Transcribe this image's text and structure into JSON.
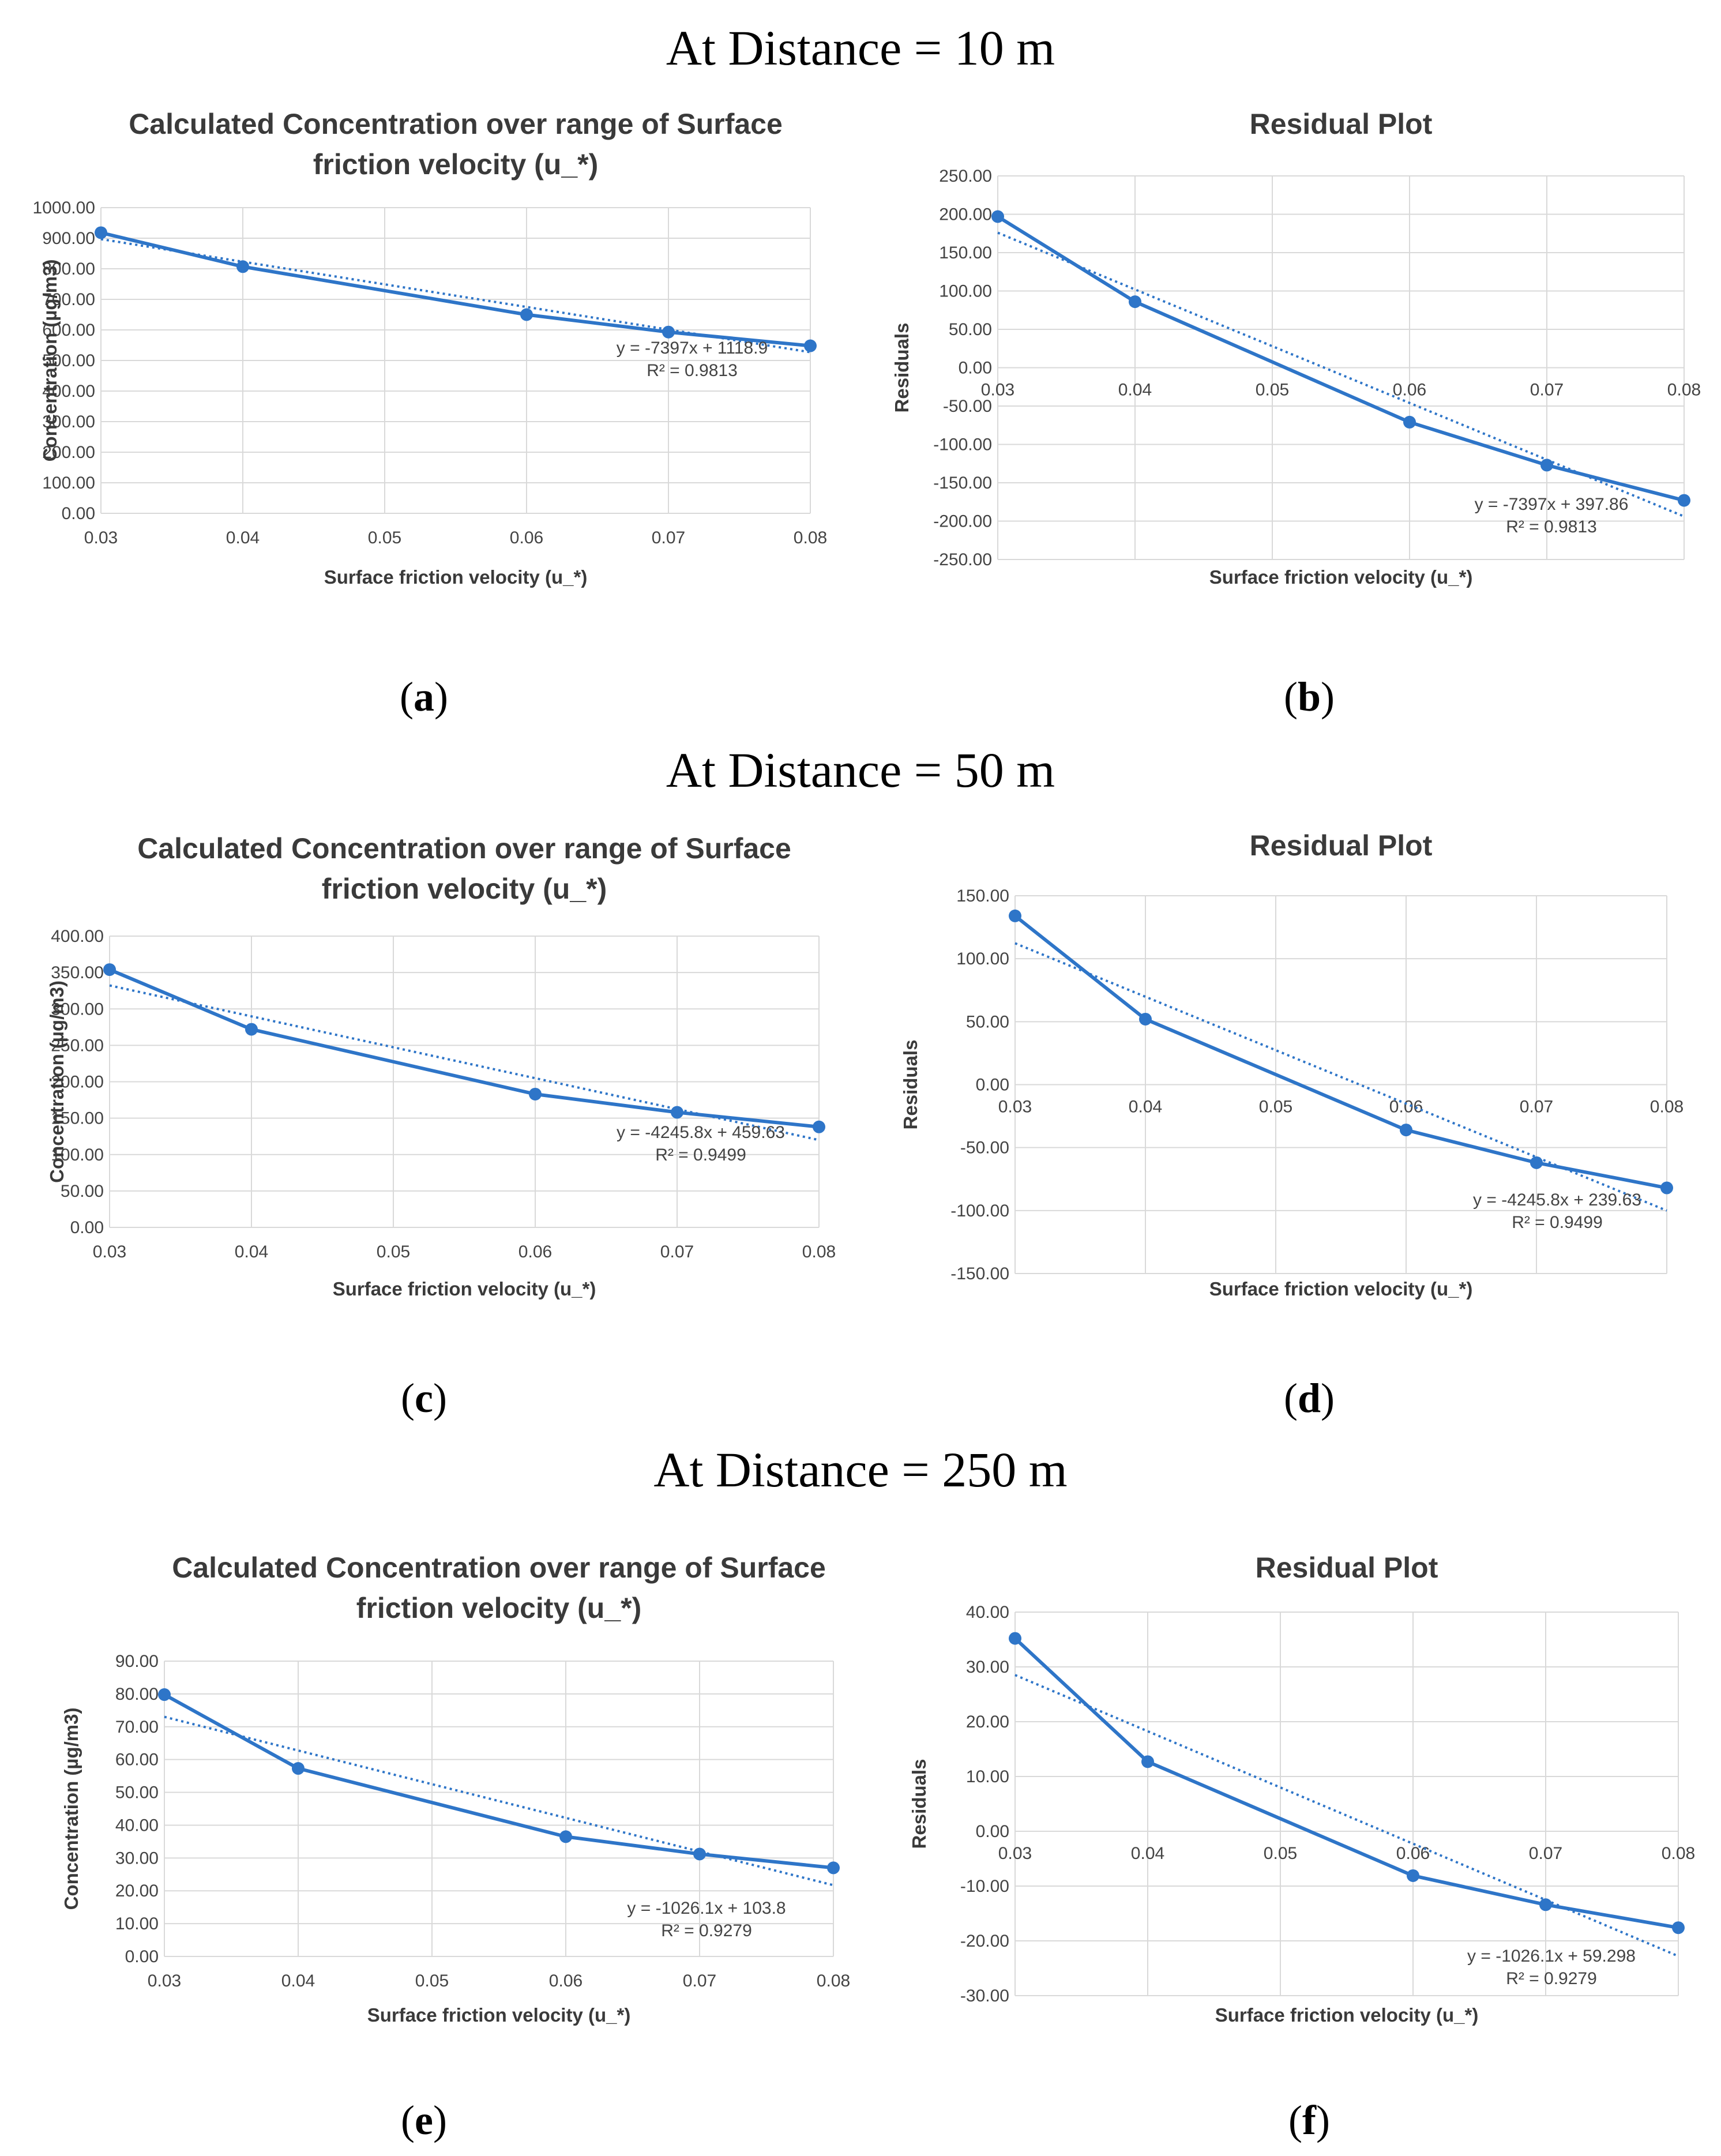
{
  "sections": [
    {
      "heading": "At Distance = 10 m"
    },
    {
      "heading": "At Distance = 50 m"
    },
    {
      "heading": "At Distance = 250 m"
    }
  ],
  "panel_labels": [
    {
      "open": "(",
      "letter": "a",
      "close": ")"
    },
    {
      "open": "(",
      "letter": "b",
      "close": ")"
    },
    {
      "open": "(",
      "letter": "c",
      "close": ")"
    },
    {
      "open": "(",
      "letter": "d",
      "close": ")"
    },
    {
      "open": "(",
      "letter": "e",
      "close": ")"
    },
    {
      "open": "(",
      "letter": "f",
      "close": ")"
    }
  ],
  "colors": {
    "series": "#2e75c8",
    "trend": "#2e75c8",
    "grid": "#d9d9d9"
  },
  "chart_data": [
    {
      "type": "line",
      "title": [
        "Calculated Concentration over range of Surface",
        "friction velocity (u_*)"
      ],
      "xlabel": "Surface friction velocity (u_*)",
      "ylabel": "Concentration (µg/m3)",
      "x": [
        0.03,
        0.04,
        0.06,
        0.07,
        0.08
      ],
      "y": [
        918,
        807,
        650,
        593,
        548
      ],
      "xticks": [
        "0.03",
        "0.04",
        "0.05",
        "0.06",
        "0.07",
        "0.08"
      ],
      "xlim": [
        0.03,
        0.08
      ],
      "ylim": [
        0,
        1000
      ],
      "ystep": 100,
      "ydecimals": 2,
      "trendline": {
        "type": "linear",
        "slope": -7397,
        "intercept": 1118.9
      },
      "equation": "y = -7397x + 1118.9",
      "r2": "R² = 0.9813",
      "grid": true
    },
    {
      "type": "line",
      "title": [
        "Residual Plot"
      ],
      "xlabel": "Surface friction velocity (u_*)",
      "ylabel": "Residuals",
      "x": [
        0.03,
        0.04,
        0.06,
        0.07,
        0.08
      ],
      "y": [
        197,
        86,
        -71,
        -127,
        -173
      ],
      "xticks": [
        "0.03",
        "0.04",
        "0.05",
        "0.06",
        "0.07",
        "0.08"
      ],
      "xlim": [
        0.03,
        0.08
      ],
      "ylim": [
        -250,
        250
      ],
      "ystep": 50,
      "ydecimals": 2,
      "trendline": {
        "type": "linear",
        "slope": -7397,
        "intercept": 397.86
      },
      "equation": "y = -7397x + 397.86",
      "r2": "R² = 0.9813",
      "grid": true
    },
    {
      "type": "line",
      "title": [
        "Calculated Concentration over range of Surface",
        "friction velocity (u_*)"
      ],
      "xlabel": "Surface friction velocity (u_*)",
      "ylabel": "Concentration (µg/m3)",
      "x": [
        0.03,
        0.04,
        0.06,
        0.07,
        0.08
      ],
      "y": [
        354,
        272,
        183,
        158,
        138
      ],
      "xticks": [
        "0.03",
        "0.04",
        "0.05",
        "0.06",
        "0.07",
        "0.08"
      ],
      "xlim": [
        0.03,
        0.08
      ],
      "ylim": [
        0,
        400
      ],
      "ystep": 50,
      "ydecimals": 2,
      "trendline": {
        "type": "linear",
        "slope": -4245.8,
        "intercept": 459.63
      },
      "equation": "y = -4245.8x + 459.63",
      "r2": "R² = 0.9499",
      "grid": true
    },
    {
      "type": "line",
      "title": [
        "Residual Plot"
      ],
      "xlabel": "Surface friction velocity (u_*)",
      "ylabel": "Residuals",
      "x": [
        0.03,
        0.04,
        0.06,
        0.07,
        0.08
      ],
      "y": [
        134,
        52,
        -36,
        -62,
        -82
      ],
      "xticks": [
        "0.03",
        "0.04",
        "0.05",
        "0.06",
        "0.07",
        "0.08"
      ],
      "xlim": [
        0.03,
        0.08
      ],
      "ylim": [
        -150,
        150
      ],
      "ystep": 50,
      "ydecimals": 2,
      "trendline": {
        "type": "linear",
        "slope": -4245.8,
        "intercept": 239.63
      },
      "equation": "y = -4245.8x + 239.63",
      "r2": "R² = 0.9499",
      "grid": true
    },
    {
      "type": "line",
      "title": [
        "Calculated Concentration over range of Surface",
        "friction velocity (u_*)"
      ],
      "xlabel": "Surface friction velocity (u_*)",
      "ylabel": "Concentration (µg/m3)",
      "x": [
        0.03,
        0.04,
        0.06,
        0.07,
        0.08
      ],
      "y": [
        79.8,
        57.3,
        36.5,
        31.2,
        27.0
      ],
      "xticks": [
        "0.03",
        "0.04",
        "0.05",
        "0.06",
        "0.07",
        "0.08"
      ],
      "xlim": [
        0.03,
        0.08
      ],
      "ylim": [
        0,
        90
      ],
      "ystep": 10,
      "ydecimals": 2,
      "trendline": {
        "type": "linear",
        "slope": -1026.1,
        "intercept": 103.8
      },
      "equation": "y = -1026.1x + 103.8",
      "r2": "R² = 0.9279",
      "grid": true
    },
    {
      "type": "line",
      "title": [
        "Residual Plot"
      ],
      "xlabel": "Surface friction velocity (u_*)",
      "ylabel": "Residuals",
      "x": [
        0.03,
        0.04,
        0.06,
        0.07,
        0.08
      ],
      "y": [
        35.2,
        12.7,
        -8.1,
        -13.4,
        -17.6
      ],
      "xticks": [
        "0.03",
        "0.04",
        "0.05",
        "0.06",
        "0.07",
        "0.08"
      ],
      "xlim": [
        0.03,
        0.08
      ],
      "ylim": [
        -30,
        40
      ],
      "ystep": 10,
      "ydecimals": 2,
      "trendline": {
        "type": "linear",
        "slope": -1026.1,
        "intercept": 59.298
      },
      "equation": "y = -1026.1x + 59.298",
      "r2": "R² = 0.9279",
      "grid": true
    }
  ]
}
